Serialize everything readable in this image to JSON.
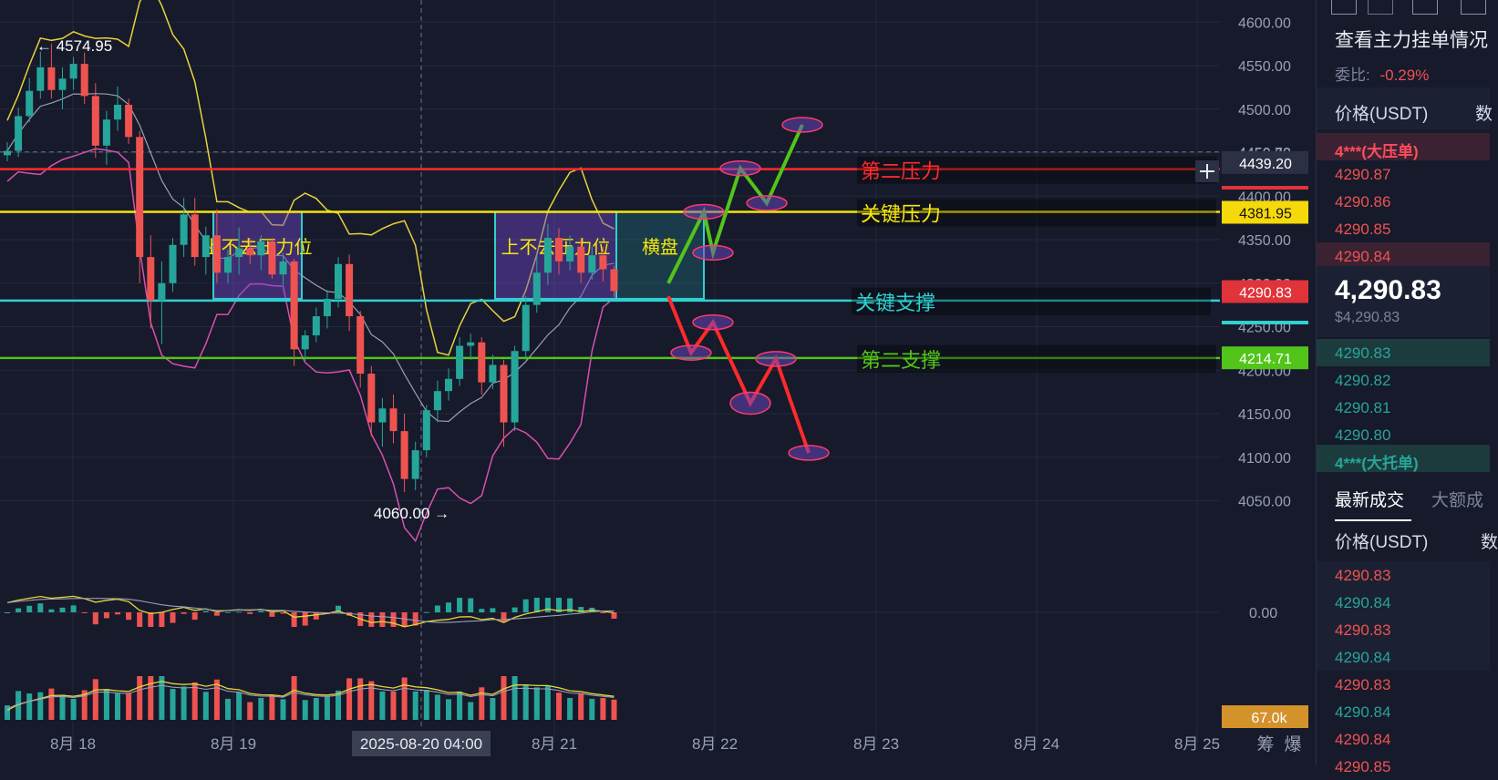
{
  "chart_data": {
    "type": "candlestick",
    "x_ticks": [
      "8月 18",
      "8月 19",
      "8月 21",
      "8月 22",
      "8月 23",
      "8月 24",
      "8月 25"
    ],
    "crosshair_date": "2025-08-20 04:00",
    "y_ticks": [
      "4600.00",
      "4550.00",
      "4500.00",
      "4450.00",
      "4400.00",
      "4350.00",
      "4300.00",
      "4250.00",
      "4200.00",
      "4150.00",
      "4100.00",
      "4050.00"
    ],
    "ylim": [
      4030,
      4625
    ],
    "high_marker": "← 4574.95",
    "low_marker": "4060.00 →",
    "macd_zero_label": "0.00",
    "volume_label": "67.0k",
    "bottom_icons": [
      "筹",
      "爆"
    ],
    "price_tags": [
      {
        "label": "4439.20",
        "price": 4439.2,
        "bg": "#2c3045",
        "fg": "#ffffff"
      },
      {
        "label": "4381.95",
        "price": 4381.95,
        "bg": "#f5d90a",
        "fg": "#111111"
      },
      {
        "label": "4290.83",
        "price": 4290.83,
        "bg": "#e0333a",
        "fg": "#ffffff"
      },
      {
        "label": "4214.71",
        "price": 4214.71,
        "bg": "#52c41a",
        "fg": "#ffffff"
      }
    ],
    "levels": [
      {
        "name": "第二压力",
        "price": 4431,
        "color": "#ff2a2a"
      },
      {
        "name": "关键压力",
        "price": 4382,
        "color": "#f5e60a"
      },
      {
        "name": "关键支撑",
        "price": 4280,
        "color": "#2fd0d0"
      },
      {
        "name": "第二支撑",
        "price": 4214,
        "color": "#52c41a"
      }
    ],
    "boxes": [
      {
        "label": "上不去压力位",
        "from": "8月19 00:00",
        "to": "8月19 11:00",
        "top": 4382,
        "bottom": 4282
      },
      {
        "label": "上不去压力位",
        "from": "8月20 18:00",
        "to": "8月21 12:00",
        "top": 4382,
        "bottom": 4282
      },
      {
        "label": "横盘",
        "from": "8月21 12:00",
        "to": "8月21 23:00",
        "top": 4382,
        "bottom": 4282
      }
    ],
    "scenario_up": [
      4300,
      4382,
      4335,
      4432,
      4392,
      4482
    ],
    "scenario_down": [
      4285,
      4220,
      4255,
      4162,
      4213,
      4105
    ],
    "candles": [
      [
        4447,
        4462,
        4440,
        4452
      ],
      [
        4452,
        4502,
        4445,
        4492
      ],
      [
        4492,
        4536,
        4485,
        4521
      ],
      [
        4521,
        4566,
        4512,
        4548
      ],
      [
        4548,
        4575,
        4512,
        4522
      ],
      [
        4522,
        4548,
        4500,
        4535
      ],
      [
        4535,
        4560,
        4522,
        4552
      ],
      [
        4552,
        4565,
        4506,
        4515
      ],
      [
        4515,
        4530,
        4444,
        4458
      ],
      [
        4458,
        4498,
        4436,
        4488
      ],
      [
        4488,
        4526,
        4475,
        4505
      ],
      [
        4505,
        4512,
        4460,
        4468
      ],
      [
        4468,
        4475,
        4300,
        4330
      ],
      [
        4330,
        4355,
        4248,
        4280
      ],
      [
        4280,
        4325,
        4230,
        4300
      ],
      [
        4300,
        4352,
        4290,
        4344
      ],
      [
        4344,
        4398,
        4330,
        4379
      ],
      [
        4379,
        4398,
        4320,
        4330
      ],
      [
        4330,
        4365,
        4310,
        4355
      ],
      [
        4355,
        4385,
        4300,
        4312
      ],
      [
        4312,
        4338,
        4300,
        4330
      ],
      [
        4330,
        4364,
        4310,
        4340
      ],
      [
        4340,
        4352,
        4322,
        4332
      ],
      [
        4332,
        4355,
        4315,
        4348
      ],
      [
        4348,
        4352,
        4305,
        4310
      ],
      [
        4310,
        4335,
        4298,
        4325
      ],
      [
        4325,
        4328,
        4205,
        4224
      ],
      [
        4224,
        4246,
        4211,
        4240
      ],
      [
        4240,
        4272,
        4232,
        4262
      ],
      [
        4262,
        4292,
        4248,
        4282
      ],
      [
        4282,
        4330,
        4272,
        4322
      ],
      [
        4322,
        4333,
        4245,
        4262
      ],
      [
        4262,
        4268,
        4180,
        4196
      ],
      [
        4196,
        4205,
        4124,
        4140
      ],
      [
        4140,
        4168,
        4112,
        4156
      ],
      [
        4156,
        4172,
        4116,
        4130
      ],
      [
        4130,
        4150,
        4060,
        4075
      ],
      [
        4075,
        4118,
        4062,
        4108
      ],
      [
        4108,
        4160,
        4100,
        4154
      ],
      [
        4154,
        4188,
        4140,
        4176
      ],
      [
        4176,
        4202,
        4165,
        4190
      ],
      [
        4190,
        4238,
        4182,
        4228
      ],
      [
        4228,
        4242,
        4212,
        4232
      ],
      [
        4232,
        4238,
        4172,
        4186
      ],
      [
        4186,
        4218,
        4178,
        4206
      ],
      [
        4206,
        4212,
        4112,
        4140
      ],
      [
        4140,
        4228,
        4130,
        4222
      ],
      [
        4222,
        4285,
        4212,
        4275
      ],
      [
        4275,
        4332,
        4266,
        4312
      ],
      [
        4312,
        4368,
        4298,
        4352
      ],
      [
        4352,
        4363,
        4310,
        4325
      ],
      [
        4325,
        4355,
        4315,
        4342
      ],
      [
        4342,
        4352,
        4300,
        4312
      ],
      [
        4312,
        4342,
        4304,
        4332
      ],
      [
        4332,
        4342,
        4302,
        4316
      ],
      [
        4316,
        4320,
        4284,
        4291
      ]
    ]
  },
  "right_axis_edge_marks": [
    "4450.72",
    "4300.00"
  ],
  "toolbar_icons": [
    "expand-icon",
    "bookmark-icon",
    "list-icon",
    "layout-icon"
  ],
  "side": {
    "title": "查看主力挂单情况",
    "ratio_label": "委比:",
    "ratio_value": "-0.29%",
    "price_header": "价格(USDT)",
    "qty_header_partial": "数",
    "big_ask": "4***(大压单)",
    "asks": [
      "4290.87",
      "4290.86",
      "4290.85",
      "4290.84"
    ],
    "last_price": "4,290.83",
    "last_price_usd": "$4,290.83",
    "bids": [
      "4290.83",
      "4290.82",
      "4290.81",
      "4290.80"
    ],
    "big_bid": "4***(大托单)",
    "tab_latest": "最新成交",
    "tab_big_partial": "大额成",
    "trades_header": "价格(USDT)",
    "trades_qty_partial": "数",
    "trades": [
      {
        "p": "4290.83",
        "side": "sell"
      },
      {
        "p": "4290.84",
        "side": "buy"
      },
      {
        "p": "4290.83",
        "side": "sell"
      },
      {
        "p": "4290.84",
        "side": "buy"
      },
      {
        "p": "4290.83",
        "side": "sell"
      },
      {
        "p": "4290.84",
        "side": "buy"
      },
      {
        "p": "4290.84",
        "side": "sell"
      },
      {
        "p": "4290.85",
        "side": "sell"
      }
    ]
  },
  "colors": {
    "up": "#26a69a",
    "down": "#ef5350",
    "bg": "#161a2b",
    "grid": "#23283b",
    "text": "#9aa0b4"
  }
}
